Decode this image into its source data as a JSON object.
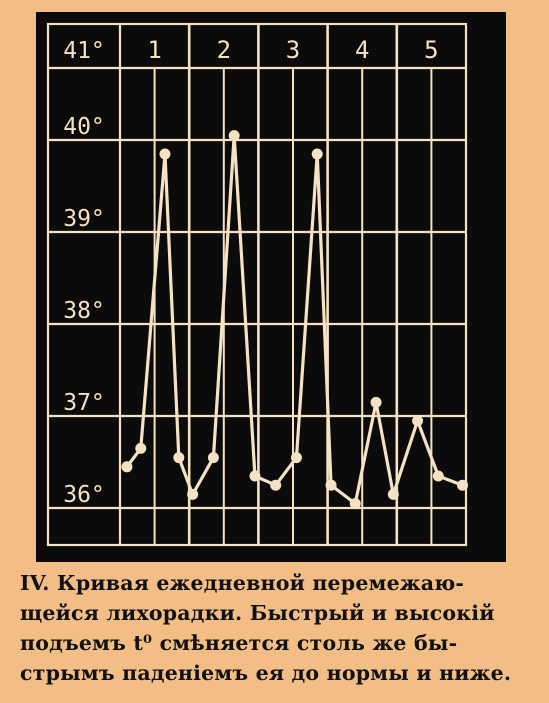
{
  "chart_data": {
    "type": "line",
    "title": "",
    "xlabel": "",
    "ylabel": "",
    "day_labels": [
      "1",
      "2",
      "3",
      "4",
      "5"
    ],
    "y_tick_labels": [
      "41°",
      "40°",
      "39°",
      "38°",
      "37°",
      "36°"
    ],
    "y_ticks": [
      41,
      40,
      39,
      38,
      37,
      36
    ],
    "ylim": [
      35.8,
      41.3
    ],
    "xlim": [
      0,
      5
    ],
    "grid": true,
    "series": [
      {
        "x": [
          0.1,
          0.3,
          0.65,
          0.85,
          1.05,
          1.35,
          1.65,
          1.95,
          2.25,
          2.55,
          2.85,
          3.05,
          3.4,
          3.7,
          3.95,
          4.3,
          4.6,
          4.95
        ],
        "values": [
          36.6,
          36.8,
          40.0,
          36.7,
          36.3,
          36.7,
          40.2,
          36.5,
          36.4,
          36.7,
          40.0,
          36.4,
          36.2,
          37.3,
          36.3,
          37.1,
          36.5,
          36.4
        ]
      }
    ],
    "colors": {
      "background": "#f2be86",
      "panel": "#0b0b0b",
      "grid": "#f5e2c2",
      "line": "#f5e2c2"
    }
  },
  "caption": {
    "lines": [
      "IV. Кривая ежедневной перемежаю-",
      "щейся лихорадки. Быстрый и высокiй",
      "подъемъ t⁰ смѣняется столь же бы-",
      "стрымъ паденiемъ ея до нормы и ниже."
    ]
  }
}
